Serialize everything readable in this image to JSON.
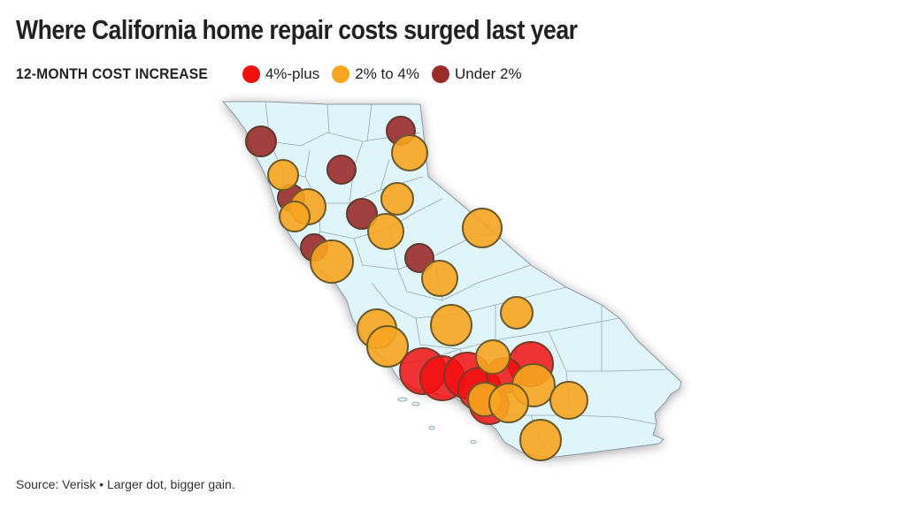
{
  "title": "Where California home repair costs surged last year",
  "legend": {
    "title": "12-MONTH COST INCREASE",
    "items": [
      {
        "label": "4%-plus",
        "color": "#f20f0f"
      },
      {
        "label": "2% to 4%",
        "color": "#f7a51f"
      },
      {
        "label": "Under 2%",
        "color": "#9b2c2c"
      }
    ]
  },
  "source": "Source: Verisk • Larger dot, bigger gain.",
  "colors": {
    "land": "#dff5fa",
    "county_lines": "#9aa6b2",
    "outline": "#8e97a3",
    "dot_stroke": "#5e5a36"
  },
  "icons": [
    "california-map",
    "legend-dot"
  ]
}
